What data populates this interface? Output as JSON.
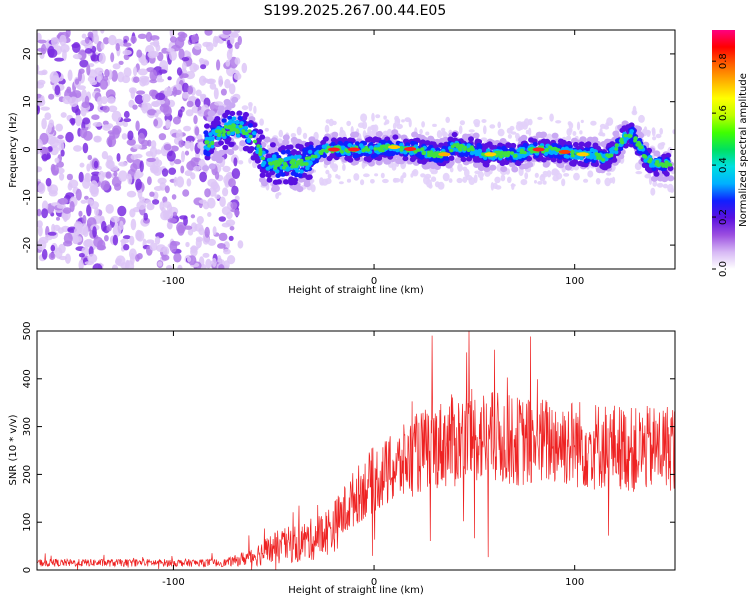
{
  "figure_title": "S199.2025.267.00.44.E05",
  "chart_data": [
    {
      "type": "heatmap",
      "title": "S199.2025.267.00.44.E05",
      "xlabel": "Height of straight line (km)",
      "ylabel": "Frequency (Hz)",
      "xlim": [
        -168,
        150
      ],
      "ylim": [
        -25,
        25
      ],
      "xticks": [
        -100,
        0,
        100
      ],
      "xtick_labels": [
        "-100",
        "0",
        "100"
      ],
      "yticks": [
        -20,
        -10,
        0,
        10,
        20
      ],
      "ytick_labels": [
        "-20",
        "-10",
        "0",
        "10",
        "20"
      ],
      "colorbar": {
        "label": "Normalized spectral amplitude",
        "range": [
          0,
          0.92
        ],
        "ticks": [
          0.0,
          0.2,
          0.4,
          0.6,
          0.8
        ],
        "tick_labels": [
          "0.0",
          "0.2",
          "0.4",
          "0.6",
          "0.8"
        ],
        "colors": [
          "#ffffff",
          "#d7b8f5",
          "#9b4ee0",
          "#5a10e0",
          "#1020ff",
          "#00b0ff",
          "#00e0e0",
          "#00e060",
          "#40ff00",
          "#c0ff00",
          "#ffff00",
          "#ffb000",
          "#ff6000",
          "#ff0000",
          "#ff0080"
        ]
      },
      "ridge_freq": {
        "x": [
          -84,
          -78,
          -74,
          -70,
          -66,
          -62,
          -58,
          -55,
          -50,
          -46,
          -40,
          -36,
          -32,
          -28,
          -25,
          -18,
          -10,
          0,
          10,
          20,
          30,
          36,
          40,
          45,
          50,
          55,
          60,
          70,
          80,
          90,
          100,
          110,
          114,
          118,
          122,
          126,
          129,
          132,
          136,
          140,
          144,
          148
        ],
        "y": [
          1,
          3,
          4,
          5,
          4,
          3,
          1,
          -2,
          -3,
          -3,
          -3,
          -3,
          -2,
          -1,
          0,
          0,
          0,
          0,
          0.5,
          0,
          -1,
          -1,
          1,
          0,
          0,
          -1,
          -1,
          -1,
          0,
          0,
          -1,
          -1,
          -2,
          -1,
          1,
          3,
          3,
          1,
          -2,
          -3,
          -3,
          -3
        ]
      },
      "noise_region_x": [
        -168,
        -68
      ]
    },
    {
      "type": "line",
      "xlabel": "Height of straight line (km)",
      "ylabel": "SNR (10 * v/v)",
      "xlim": [
        -168,
        150
      ],
      "ylim": [
        0,
        500
      ],
      "xticks": [
        -100,
        0,
        100
      ],
      "xtick_labels": [
        "-100",
        "0",
        "100"
      ],
      "yticks": [
        0,
        100,
        200,
        300,
        400,
        500
      ],
      "ytick_labels": [
        "0",
        "100",
        "200",
        "300",
        "400",
        "500"
      ],
      "color": "#ee2222",
      "envelope_x": [
        -168,
        -75,
        -68,
        -60,
        -50,
        -40,
        -30,
        -20,
        -10,
        0,
        10,
        20,
        30,
        40,
        50,
        60,
        70,
        80,
        90,
        100,
        110,
        120,
        130,
        140,
        150
      ],
      "envelope_mean": [
        15,
        15,
        20,
        30,
        45,
        55,
        65,
        90,
        150,
        190,
        210,
        240,
        260,
        270,
        280,
        275,
        270,
        265,
        270,
        265,
        260,
        260,
        250,
        255,
        260
      ],
      "envelope_spread": [
        8,
        8,
        12,
        22,
        35,
        40,
        45,
        55,
        60,
        70,
        75,
        85,
        90,
        100,
        100,
        100,
        95,
        95,
        95,
        95,
        95,
        90,
        90,
        90,
        95
      ]
    }
  ]
}
